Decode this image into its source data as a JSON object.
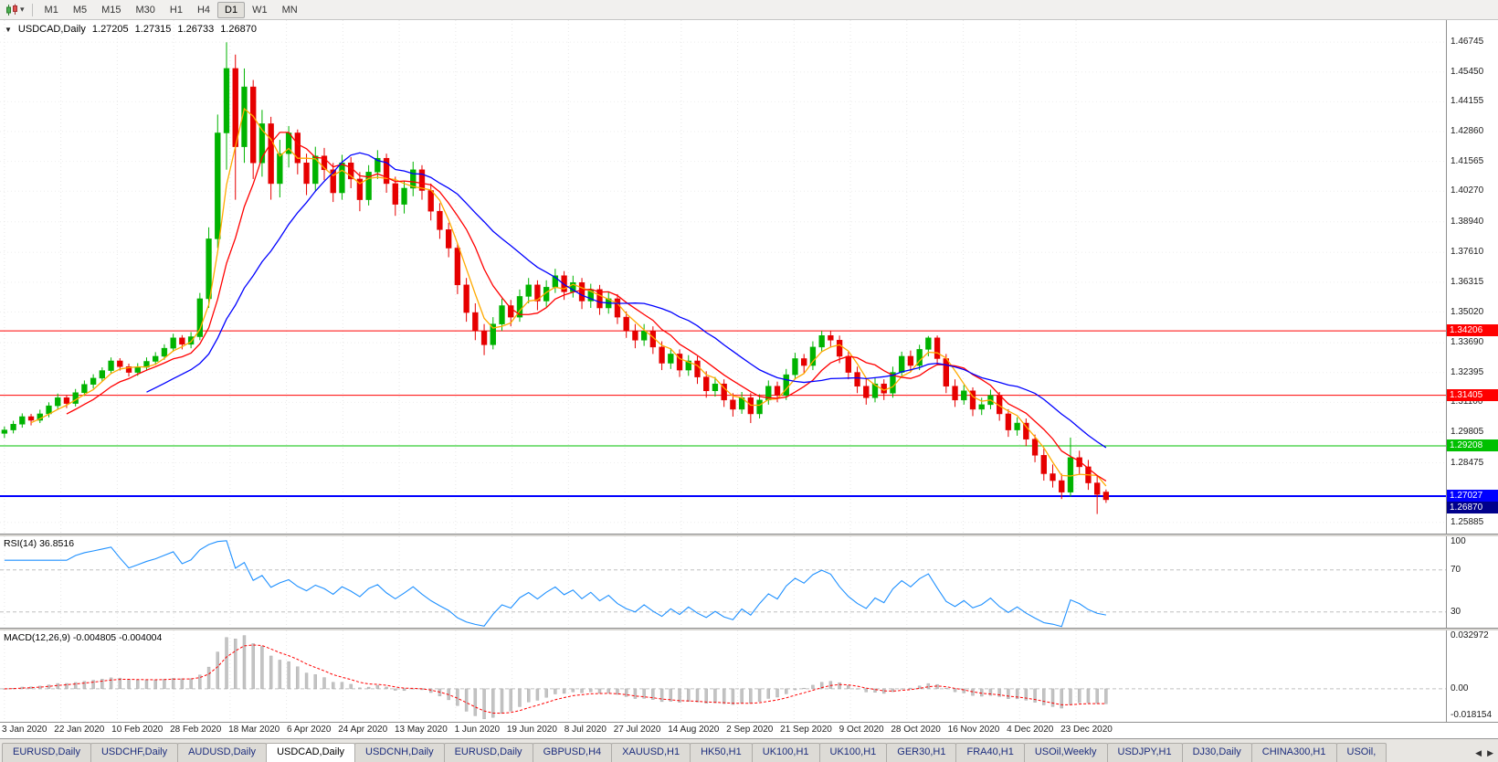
{
  "toolbar": {
    "dropdown_caret": "▾",
    "timeframes": [
      "M1",
      "M5",
      "M15",
      "M30",
      "H1",
      "H4",
      "D1",
      "W1",
      "MN"
    ],
    "active_timeframe": "D1"
  },
  "chart": {
    "marker": "▼",
    "symbol_period": "USDCAD,Daily",
    "open": "1.27205",
    "high": "1.27315",
    "low": "1.26733",
    "close": "1.26870",
    "bid_box": "1.26870",
    "bid_box_color": "#00008b"
  },
  "price_axis": {
    "labels": [
      "1.46745",
      "1.45450",
      "1.44155",
      "1.42860",
      "1.41565",
      "1.40270",
      "1.38940",
      "1.37610",
      "1.36315",
      "1.35020",
      "1.33690",
      "1.32395",
      "1.31100",
      "1.29805",
      "1.28475",
      "1.25885"
    ],
    "min": 1.254,
    "max": 1.477
  },
  "levels": [
    {
      "label": "1.34206",
      "price": 1.34206,
      "color": "#ff0000",
      "width": 1
    },
    {
      "label": "1.31405",
      "price": 1.31405,
      "color": "#ff0000",
      "width": 1
    },
    {
      "label": "1.29208",
      "price": 1.29208,
      "color": "#00c000",
      "width": 1
    },
    {
      "label": "1.27027",
      "price": 1.27027,
      "color": "#0000ff",
      "width": 2
    }
  ],
  "indicators": {
    "rsi": {
      "label": "RSI(14) 36.8516",
      "calc_period": 7,
      "color": "#1e90ff",
      "level_lines": [
        70,
        30
      ],
      "axis_labels": [
        "100",
        "70",
        "30"
      ],
      "range": [
        15,
        102
      ]
    },
    "macd": {
      "label": "MACD(12,26,9) -0.004805 -0.004004",
      "calc_fast": 6,
      "calc_slow": 13,
      "calc_signal": 5,
      "hist_color": "#c3c3c3",
      "signal_color": "#ff0000",
      "axis_labels": [
        "0.032972",
        "0.00",
        "-0.018154"
      ],
      "range": [
        -0.0195,
        0.0345
      ]
    }
  },
  "x_axis": {
    "labels": [
      "3 Jan 2020",
      "22 Jan 2020",
      "10 Feb 2020",
      "28 Feb 2020",
      "18 Mar 2020",
      "6 Apr 2020",
      "24 Apr 2020",
      "13 May 2020",
      "1 Jun 2020",
      "19 Jun 2020",
      "8 Jul 2020",
      "27 Jul 2020",
      "14 Aug 2020",
      "2 Sep 2020",
      "21 Sep 2020",
      "9 Oct 2020",
      "28 Oct 2020",
      "16 Nov 2020",
      "4 Dec 2020",
      "23 Dec 2020"
    ]
  },
  "chart_data": {
    "type": "candlestick",
    "symbol": "USDCAD",
    "timeframe": "Daily",
    "up_color": "#00b300",
    "down_color": "#e60000",
    "data_width_frac": 0.768,
    "moving_averages": [
      {
        "period": 4,
        "color": "#ffaa00"
      },
      {
        "period": 8,
        "color": "#ff0000"
      },
      {
        "period": 17,
        "color": "#0000ff"
      }
    ],
    "candles": [
      [
        1.2975,
        1.3005,
        1.2955,
        1.299
      ],
      [
        1.299,
        1.303,
        1.2975,
        1.3015
      ],
      [
        1.3015,
        1.3062,
        1.3,
        1.3048
      ],
      [
        1.3048,
        1.306,
        1.301,
        1.3032
      ],
      [
        1.3032,
        1.3078,
        1.302,
        1.306
      ],
      [
        1.306,
        1.311,
        1.3045,
        1.3095
      ],
      [
        1.3095,
        1.3148,
        1.308,
        1.313
      ],
      [
        1.313,
        1.3142,
        1.3085,
        1.3105
      ],
      [
        1.3105,
        1.3168,
        1.3092,
        1.3152
      ],
      [
        1.3152,
        1.3205,
        1.3138,
        1.3188
      ],
      [
        1.3188,
        1.3232,
        1.317,
        1.3215
      ],
      [
        1.3215,
        1.3262,
        1.32,
        1.3248
      ],
      [
        1.3248,
        1.3305,
        1.3235,
        1.329
      ],
      [
        1.329,
        1.3302,
        1.3248,
        1.3265
      ],
      [
        1.3265,
        1.3278,
        1.3222,
        1.324
      ],
      [
        1.324,
        1.328,
        1.3225,
        1.3262
      ],
      [
        1.3262,
        1.3305,
        1.3248,
        1.3288
      ],
      [
        1.3288,
        1.3328,
        1.3272,
        1.331
      ],
      [
        1.331,
        1.3362,
        1.3295,
        1.3345
      ],
      [
        1.3345,
        1.3408,
        1.333,
        1.339
      ],
      [
        1.339,
        1.3402,
        1.334,
        1.3362
      ],
      [
        1.3362,
        1.3415,
        1.3345,
        1.3395
      ],
      [
        1.3395,
        1.3585,
        1.338,
        1.356
      ],
      [
        1.356,
        1.387,
        1.352,
        1.382
      ],
      [
        1.382,
        1.436,
        1.378,
        1.428
      ],
      [
        1.428,
        1.4674,
        1.412,
        1.456
      ],
      [
        1.456,
        1.462,
        1.399,
        1.422
      ],
      [
        1.422,
        1.456,
        1.415,
        1.448
      ],
      [
        1.448,
        1.451,
        1.408,
        1.415
      ],
      [
        1.415,
        1.438,
        1.409,
        1.432
      ],
      [
        1.432,
        1.435,
        1.399,
        1.406
      ],
      [
        1.406,
        1.425,
        1.4,
        1.419
      ],
      [
        1.419,
        1.431,
        1.413,
        1.428
      ],
      [
        1.428,
        1.4295,
        1.41,
        1.415
      ],
      [
        1.415,
        1.419,
        1.401,
        1.406
      ],
      [
        1.406,
        1.422,
        1.403,
        1.418
      ],
      [
        1.418,
        1.4215,
        1.4075,
        1.412
      ],
      [
        1.412,
        1.415,
        1.398,
        1.402
      ],
      [
        1.402,
        1.4185,
        1.399,
        1.415
      ],
      [
        1.415,
        1.4175,
        1.404,
        1.408
      ],
      [
        1.408,
        1.411,
        1.394,
        1.399
      ],
      [
        1.399,
        1.414,
        1.3965,
        1.411
      ],
      [
        1.411,
        1.4205,
        1.408,
        1.417
      ],
      [
        1.417,
        1.419,
        1.402,
        1.406
      ],
      [
        1.406,
        1.409,
        1.392,
        1.397
      ],
      [
        1.397,
        1.407,
        1.393,
        1.404
      ],
      [
        1.404,
        1.4155,
        1.4005,
        1.412
      ],
      [
        1.412,
        1.414,
        1.399,
        1.403
      ],
      [
        1.403,
        1.406,
        1.39,
        1.394
      ],
      [
        1.394,
        1.3975,
        1.382,
        1.386
      ],
      [
        1.386,
        1.389,
        1.374,
        1.378
      ],
      [
        1.378,
        1.38,
        1.358,
        1.362
      ],
      [
        1.362,
        1.365,
        1.346,
        1.35
      ],
      [
        1.35,
        1.354,
        1.338,
        1.342
      ],
      [
        1.342,
        1.345,
        1.3315,
        1.336
      ],
      [
        1.336,
        1.348,
        1.334,
        1.345
      ],
      [
        1.345,
        1.356,
        1.342,
        1.353
      ],
      [
        1.353,
        1.3555,
        1.344,
        1.348
      ],
      [
        1.348,
        1.36,
        1.346,
        1.357
      ],
      [
        1.357,
        1.365,
        1.354,
        1.362
      ],
      [
        1.362,
        1.364,
        1.351,
        1.355
      ],
      [
        1.355,
        1.364,
        1.3525,
        1.361
      ],
      [
        1.361,
        1.369,
        1.3585,
        1.366
      ],
      [
        1.366,
        1.368,
        1.3555,
        1.359
      ],
      [
        1.359,
        1.366,
        1.3565,
        1.363
      ],
      [
        1.363,
        1.365,
        1.3515,
        1.355
      ],
      [
        1.355,
        1.3625,
        1.352,
        1.36
      ],
      [
        1.36,
        1.362,
        1.349,
        1.352
      ],
      [
        1.352,
        1.359,
        1.3495,
        1.356
      ],
      [
        1.356,
        1.358,
        1.345,
        1.348
      ],
      [
        1.348,
        1.3505,
        1.339,
        1.342
      ],
      [
        1.342,
        1.345,
        1.3345,
        1.338
      ],
      [
        1.338,
        1.345,
        1.3355,
        1.342
      ],
      [
        1.342,
        1.344,
        1.332,
        1.335
      ],
      [
        1.335,
        1.3375,
        1.325,
        1.328
      ],
      [
        1.328,
        1.3345,
        1.3255,
        1.332
      ],
      [
        1.332,
        1.334,
        1.322,
        1.325
      ],
      [
        1.325,
        1.3315,
        1.3225,
        1.329
      ],
      [
        1.329,
        1.331,
        1.319,
        1.322
      ],
      [
        1.322,
        1.3245,
        1.313,
        1.316
      ],
      [
        1.316,
        1.322,
        1.3135,
        1.319
      ],
      [
        1.319,
        1.321,
        1.309,
        1.312
      ],
      [
        1.312,
        1.315,
        1.3048,
        1.308
      ],
      [
        1.308,
        1.3155,
        1.306,
        1.313
      ],
      [
        1.313,
        1.315,
        1.302,
        1.306
      ],
      [
        1.306,
        1.3145,
        1.304,
        1.312
      ],
      [
        1.312,
        1.3205,
        1.31,
        1.318
      ],
      [
        1.318,
        1.32,
        1.311,
        1.314
      ],
      [
        1.314,
        1.3255,
        1.312,
        1.323
      ],
      [
        1.323,
        1.3325,
        1.321,
        1.33
      ],
      [
        1.33,
        1.332,
        1.3235,
        1.327
      ],
      [
        1.327,
        1.3375,
        1.325,
        1.335
      ],
      [
        1.335,
        1.342,
        1.333,
        1.34
      ],
      [
        1.34,
        1.3421,
        1.335,
        1.338
      ],
      [
        1.338,
        1.34,
        1.328,
        1.331
      ],
      [
        1.331,
        1.333,
        1.321,
        1.324
      ],
      [
        1.324,
        1.3265,
        1.315,
        1.318
      ],
      [
        1.318,
        1.3215,
        1.31,
        1.313
      ],
      [
        1.313,
        1.3215,
        1.311,
        1.319
      ],
      [
        1.319,
        1.321,
        1.312,
        1.315
      ],
      [
        1.315,
        1.3265,
        1.313,
        1.324
      ],
      [
        1.324,
        1.333,
        1.322,
        1.331
      ],
      [
        1.331,
        1.3335,
        1.324,
        1.327
      ],
      [
        1.327,
        1.336,
        1.325,
        1.334
      ],
      [
        1.334,
        1.3398,
        1.331,
        1.339
      ],
      [
        1.339,
        1.34,
        1.327,
        1.33
      ],
      [
        1.33,
        1.332,
        1.315,
        1.318
      ],
      [
        1.318,
        1.321,
        1.309,
        1.312
      ],
      [
        1.312,
        1.3185,
        1.31,
        1.316
      ],
      [
        1.316,
        1.3175,
        1.305,
        1.308
      ],
      [
        1.308,
        1.313,
        1.3055,
        1.31
      ],
      [
        1.31,
        1.3165,
        1.308,
        1.314
      ],
      [
        1.314,
        1.3155,
        1.303,
        1.306
      ],
      [
        1.306,
        1.308,
        1.296,
        1.299
      ],
      [
        1.299,
        1.3045,
        1.2965,
        1.302
      ],
      [
        1.302,
        1.304,
        1.292,
        1.295
      ],
      [
        1.295,
        1.297,
        1.285,
        1.288
      ],
      [
        1.288,
        1.291,
        1.277,
        1.28
      ],
      [
        1.28,
        1.284,
        1.274,
        1.277
      ],
      [
        1.277,
        1.28,
        1.269,
        1.272
      ],
      [
        1.272,
        1.2957,
        1.27,
        1.287
      ],
      [
        1.287,
        1.29,
        1.28,
        1.283
      ],
      [
        1.283,
        1.286,
        1.273,
        1.276
      ],
      [
        1.276,
        1.279,
        1.2625,
        1.271
      ],
      [
        1.27205,
        1.27315,
        1.26733,
        1.2687
      ]
    ]
  },
  "tabs": {
    "items": [
      "EURUSD,Daily",
      "USDCHF,Daily",
      "AUDUSD,Daily",
      "USDCAD,Daily",
      "USDCNH,Daily",
      "EURUSD,Daily",
      "GBPUSD,H4",
      "XAUUSD,H1",
      "HK50,H1",
      "UK100,H1",
      "UK100,H1",
      "GER30,H1",
      "FRA40,H1",
      "USOil,Weekly",
      "USDJPY,H1",
      "DJ30,Daily",
      "CHINA300,H1",
      "USOil,"
    ],
    "active_index": 3,
    "scroll_left": "◀",
    "scroll_right": "▶"
  }
}
